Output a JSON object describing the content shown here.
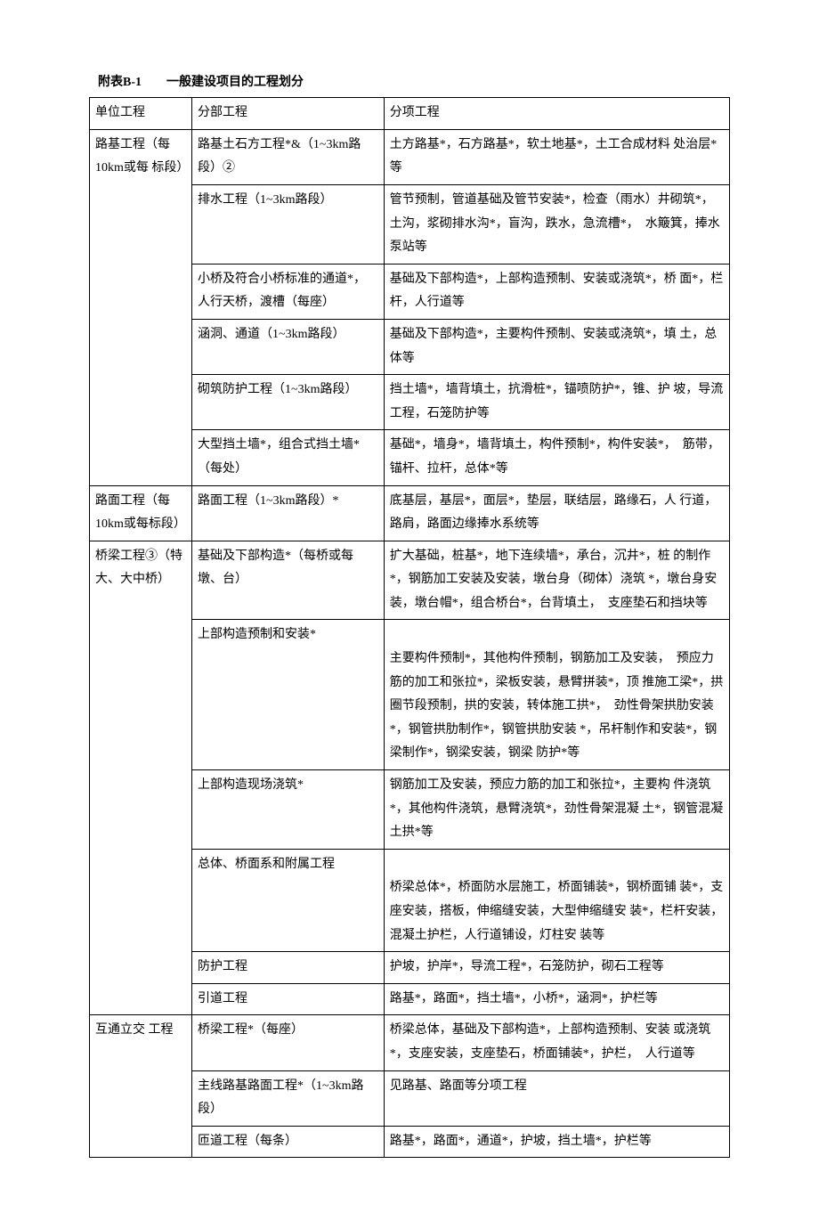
{
  "title": "附表B-1　　一般建设项目的工程划分",
  "header": {
    "c1": "单位工程",
    "c2": "分部工程",
    "c3": "分项工程"
  },
  "rows": [
    {
      "c1": "路基工程（每10km或每 标段）",
      "c1span": 6,
      "c2": "路基土石方工程*&（1~3km路段）②",
      "c3": "土方路基*，石方路基*，软土地基*，土工合成材料 处治层*等"
    },
    {
      "c2": "排水工程（1~3km路段）",
      "c3": "管节预制，管道基础及管节安装*，检查（雨水）井砌筑*，土沟，浆砌排水沟*，盲沟，跌水，急流槽*，　水簸箕，捧水泵站等"
    },
    {
      "c2": "小桥及符合小桥标准的通道*，人行天桥，渡槽（每座）",
      "c3": "基础及下部构造*，上部构造预制、安装或浇筑*，桥 面*，栏杆，人行道等"
    },
    {
      "c2": "涵洞、通道（1~3km路段）",
      "c3": "基础及下部构造*，主要构件预制、安装或浇筑*，填 土，总体等"
    },
    {
      "c2": "砌筑防护工程（1~3km路段）",
      "c3": "挡土墙*，墙背填土，抗滑桩*，锚喷防护*，锥、护 坡，导流工程，石笼防护等"
    },
    {
      "c2": "大型挡土墙*，组合式挡土墙*（每处）",
      "c3": "基础*，墙身*，墙背填土，构件预制*，构件安装*，　筋带，锚杆、拉杆，总体*等"
    },
    {
      "c1": "路面工程（每10km或每标段）",
      "c1span": 1,
      "c2": "路面工程（1~3km路段）*",
      "c3": "底基层，基层*，面层*，垫层，联结层，路缘石，人 行道，路肩，路面边缘捧水系统等"
    },
    {
      "c1": "桥梁工程③（特大、大中桥）",
      "c1span": 6,
      "c2": "基础及下部构造*（每桥或每墩、台）",
      "c3": "扩大基础，桩基*，地下连续墙*，承台，沉井*，桩 的制作*，钢筋加工安装及安装，墩台身（砌体）浇筑 *，墩台身安装，墩台帽*，组合桥台*，台背填土，　支座垫石和挡块等"
    },
    {
      "c2": "上部构造预制和安装*",
      "c3": "\n主要构件预制*，其他构件预制，钢筋加工及安装，　预应力筋的加工和张拉*，梁板安装，悬臂拼装*，顶 推施工梁*，拱圈节段预制，拱的安装，转体施工拱*，　劲性骨架拱肋安装*，钢管拱肋制作*，钢管拱肋安装 *，吊杆制作和安装*，钢梁制作*，钢梁安装，钢梁 防护*等"
    },
    {
      "c2": "上部构造现场浇筑*",
      "c3": "钢筋加工及安装，预应力筋的加工和张拉*，主要构 件浇筑*，其他构件浇筑，悬臂浇筑*，劲性骨架混凝 土*，钢管混凝土拱*等"
    },
    {
      "c2": "总体、桥面系和附属工程",
      "c3": "\n桥梁总体*，桥面防水层施工，桥面铺装*，钢桥面铺 装*，支座安装，搭板，伸缩缝安装，大型伸缩缝安 装*，栏杆安装，混凝土护栏，人行道铺设，灯柱安 装等"
    },
    {
      "c2": "防护工程",
      "c3": "护坡，护岸*，导流工程*，石笼防护，砌石工程等"
    },
    {
      "c2": "引道工程",
      "c3": "路基*，路面*，挡土墙*，小桥*，涵洞*，护栏等"
    },
    {
      "c1": "互通立交 工程",
      "c1span": 3,
      "c2": "桥梁工程*（每座）",
      "c3": "桥梁总体，基础及下部构造*，上部构造预制、安装 或浇筑*，支座安装，支座垫石，桥面铺装*，护栏，　人行道等"
    },
    {
      "c2": "主线路基路面工程*（1~3km路 段）",
      "c3": "见路基、路面等分项工程"
    },
    {
      "c2": "匝道工程（每条）",
      "c3": "路基*，路面*，通道*，护坡，挡土墙*，护栏等"
    }
  ]
}
